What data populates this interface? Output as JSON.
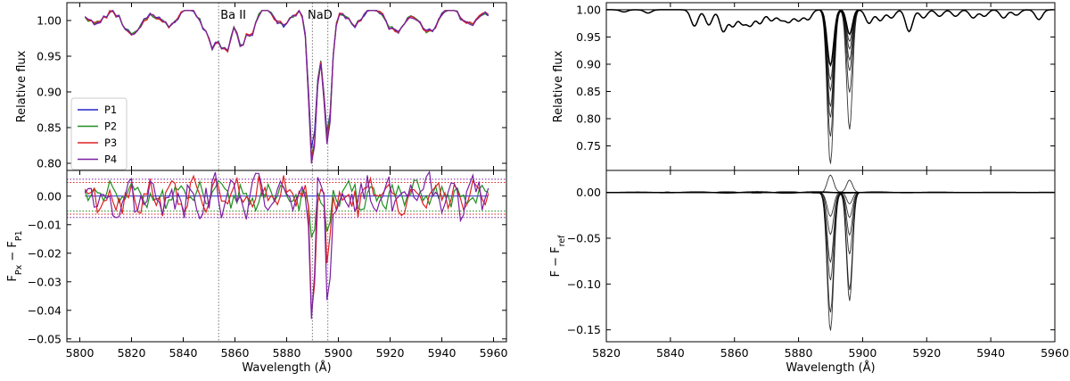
{
  "chart_data": [
    {
      "type": "line",
      "panel": "left-top",
      "ylabel": "Relative flux",
      "xlim": [
        5795,
        5965
      ],
      "ylim": [
        0.79,
        1.025
      ],
      "xticks": [
        5800,
        5820,
        5840,
        5860,
        5880,
        5900,
        5920,
        5940,
        5960
      ],
      "xtick_labels_shown": false,
      "yticks": [
        0.8,
        0.85,
        0.9,
        0.95,
        1.0
      ],
      "ytick_labels": [
        "0.80",
        "0.85",
        "0.90",
        "0.95",
        "1.00"
      ],
      "vlines": [
        5853.7,
        5889.95,
        5895.92
      ],
      "annotations": [
        {
          "text": "Ba II",
          "x": 5853.7
        },
        {
          "text": "NaD",
          "x": 5892.9
        }
      ],
      "legend": "lower-left",
      "series": [
        {
          "name": "P1",
          "color": "#2525c8"
        },
        {
          "name": "P2",
          "color": "#1f8f1f"
        },
        {
          "name": "P3",
          "color": "#e02020"
        },
        {
          "name": "P4",
          "color": "#7b1fa2"
        }
      ],
      "x_range": [
        5802,
        5958
      ],
      "x_step": 1.2,
      "features": [
        {
          "center": 5851.5,
          "depth": 0.03
        },
        {
          "center": 5854.8,
          "depth": 0.035
        },
        {
          "center": 5857.2,
          "depth": 0.04
        },
        {
          "center": 5862.5,
          "depth": 0.025
        },
        {
          "center": 5867.0,
          "depth": 0.02
        },
        {
          "center": 5889.95,
          "depth": 0.195
        },
        {
          "center": 5895.92,
          "depth": 0.165
        }
      ]
    },
    {
      "type": "line",
      "panel": "left-bottom",
      "xlabel": "Wavelength (Å)",
      "ylabel": "F_Px − F_P1",
      "xlim": [
        5795,
        5965
      ],
      "ylim": [
        -0.051,
        0.009
      ],
      "xticks": [
        5800,
        5820,
        5840,
        5860,
        5880,
        5900,
        5920,
        5940,
        5960
      ],
      "xtick_labels": [
        "5800",
        "5820",
        "5840",
        "5860",
        "5880",
        "5900",
        "5920",
        "5940",
        "5960"
      ],
      "yticks": [
        -0.05,
        -0.04,
        -0.03,
        -0.02,
        -0.01,
        0.0
      ],
      "ytick_labels": [
        "−0.05",
        "−0.04",
        "−0.03",
        "−0.02",
        "−0.01",
        "0.00"
      ],
      "hlines": [
        {
          "y": 0.0059,
          "color": "#7b1fa2"
        },
        {
          "y": 0.0048,
          "color": "#e02020"
        },
        {
          "y": -0.0052,
          "color": "#1f8f1f"
        },
        {
          "y": -0.0063,
          "color": "#e02020"
        },
        {
          "y": -0.0075,
          "color": "#7b1fa2"
        }
      ],
      "vlines": [
        5853.7,
        5889.95,
        5895.92
      ],
      "series": [
        {
          "name": "P2",
          "color": "#1f8f1f",
          "dip1": -0.016,
          "dip2": -0.014
        },
        {
          "name": "P3",
          "color": "#e02020",
          "dip1": -0.038,
          "dip2": -0.027
        },
        {
          "name": "P4",
          "color": "#7b1fa2",
          "dip1": -0.048,
          "dip2": -0.034
        }
      ]
    },
    {
      "type": "line",
      "panel": "right-top",
      "ylabel": "Relative flux",
      "xlim": [
        5820,
        5960
      ],
      "ylim": [
        0.705,
        1.013
      ],
      "xticks": [
        5820,
        5840,
        5860,
        5880,
        5900,
        5920,
        5940,
        5960
      ],
      "xtick_labels_shown": false,
      "yticks": [
        0.75,
        0.8,
        0.85,
        0.9,
        0.95,
        1.0
      ],
      "ytick_labels": [
        "0.75",
        "0.80",
        "0.85",
        "0.90",
        "0.95",
        "1.00"
      ],
      "hline": 1.0,
      "color": "#000000",
      "na_depth1": [
        0.102,
        0.128,
        0.148,
        0.178,
        0.198,
        0.233,
        0.283
      ],
      "na_depth2": [
        0.045,
        0.058,
        0.072,
        0.092,
        0.112,
        0.152,
        0.22
      ],
      "other_features": [
        {
          "center": 5825.5,
          "depth": 0.004
        },
        {
          "center": 5833.0,
          "depth": 0.006
        },
        {
          "center": 5847.5,
          "depth": 0.03
        },
        {
          "center": 5852.0,
          "depth": 0.028
        },
        {
          "center": 5856.5,
          "depth": 0.04
        },
        {
          "center": 5859.5,
          "depth": 0.03
        },
        {
          "center": 5862.5,
          "depth": 0.025
        },
        {
          "center": 5865.0,
          "depth": 0.028
        },
        {
          "center": 5868.0,
          "depth": 0.025
        },
        {
          "center": 5871.5,
          "depth": 0.02
        },
        {
          "center": 5874.5,
          "depth": 0.018
        },
        {
          "center": 5877.0,
          "depth": 0.022
        },
        {
          "center": 5880.0,
          "depth": 0.02
        },
        {
          "center": 5883.0,
          "depth": 0.018
        },
        {
          "center": 5902.0,
          "depth": 0.025
        },
        {
          "center": 5905.5,
          "depth": 0.02
        },
        {
          "center": 5909.0,
          "depth": 0.015
        },
        {
          "center": 5914.5,
          "depth": 0.04
        },
        {
          "center": 5919.0,
          "depth": 0.015
        },
        {
          "center": 5924.0,
          "depth": 0.012
        },
        {
          "center": 5929.0,
          "depth": 0.012
        },
        {
          "center": 5934.5,
          "depth": 0.015
        },
        {
          "center": 5938.0,
          "depth": 0.012
        },
        {
          "center": 5944.0,
          "depth": 0.015
        },
        {
          "center": 5948.0,
          "depth": 0.01
        },
        {
          "center": 5955.0,
          "depth": 0.018
        }
      ]
    },
    {
      "type": "line",
      "panel": "right-bottom",
      "xlabel": "Wavelength (Å)",
      "ylabel": "F − F_ref",
      "xlim": [
        5820,
        5960
      ],
      "ylim": [
        -0.163,
        0.024
      ],
      "xticks": [
        5820,
        5840,
        5860,
        5880,
        5900,
        5920,
        5940,
        5960
      ],
      "xtick_labels": [
        "5820",
        "5840",
        "5860",
        "5880",
        "5900",
        "5920",
        "5940",
        "5960"
      ],
      "yticks": [
        -0.15,
        -0.1,
        -0.05,
        0.0
      ],
      "ytick_labels": [
        "−0.15",
        "−0.10",
        "−0.05",
        "0.00"
      ],
      "hline": 0.0,
      "color": "#000000",
      "diff_dip1": [
        0.019,
        0.0,
        -0.026,
        -0.046,
        -0.076,
        -0.096,
        -0.131,
        -0.151
      ],
      "diff_dip2": [
        0.013,
        0.0,
        -0.013,
        -0.027,
        -0.047,
        -0.067,
        -0.107,
        -0.118
      ]
    }
  ]
}
